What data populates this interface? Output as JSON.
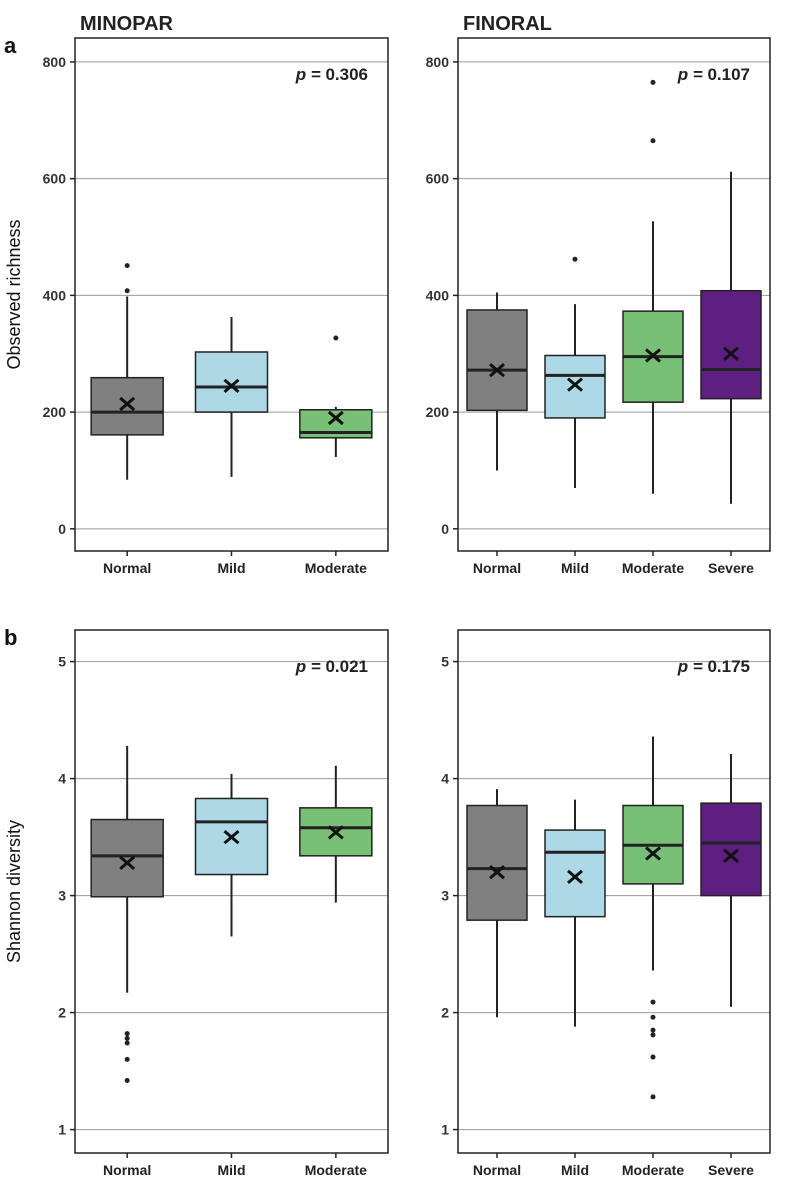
{
  "chart_data": [
    {
      "type": "box",
      "panel": "a",
      "title": "MINOPAR",
      "ylabel": "Observed richness",
      "p_value": "0.306",
      "ylim": [
        -38,
        841
      ],
      "yticks": [
        0,
        200,
        400,
        600,
        800
      ],
      "categories": [
        "Normal",
        "Mild",
        "Moderate"
      ],
      "boxes": [
        {
          "min": 84,
          "q1": 161,
          "median": 200,
          "q3": 259,
          "max": 398,
          "mean": 214,
          "outliers": [
            408,
            451
          ],
          "color": "#808080"
        },
        {
          "min": 89,
          "q1": 200,
          "median": 243,
          "q3": 303,
          "max": 363,
          "mean": 245,
          "outliers": [],
          "color": "#add8e6"
        },
        {
          "min": 123,
          "q1": 156,
          "median": 165,
          "q3": 204,
          "max": 209,
          "mean": 190,
          "outliers": [
            327
          ],
          "color": "#77c075"
        }
      ]
    },
    {
      "type": "box",
      "panel": "",
      "title": "FINORAL",
      "ylabel": "",
      "p_value": "0.107",
      "ylim": [
        -38,
        841
      ],
      "yticks": [
        0,
        200,
        400,
        600,
        800
      ],
      "categories": [
        "Normal",
        "Mild",
        "Moderate",
        "Severe"
      ],
      "boxes": [
        {
          "min": 100,
          "q1": 203,
          "median": 272,
          "q3": 375,
          "max": 405,
          "mean": 272,
          "outliers": [],
          "color": "#808080"
        },
        {
          "min": 70,
          "q1": 190,
          "median": 263,
          "q3": 297,
          "max": 385,
          "mean": 247,
          "outliers": [
            462
          ],
          "color": "#add8e6"
        },
        {
          "min": 60,
          "q1": 217,
          "median": 295,
          "q3": 373,
          "max": 527,
          "mean": 297,
          "outliers": [
            665,
            765
          ],
          "color": "#77c075"
        },
        {
          "min": 43,
          "q1": 223,
          "median": 273,
          "q3": 408,
          "max": 612,
          "mean": 300,
          "outliers": [],
          "color": "#5f1f82"
        }
      ]
    },
    {
      "type": "box",
      "panel": "b",
      "title": "",
      "ylabel": "Shannon diversity",
      "p_value": "0.021",
      "ylim": [
        0.8,
        5.27
      ],
      "yticks": [
        1,
        2,
        3,
        4,
        5
      ],
      "categories": [
        "Normal",
        "Mild",
        "Moderate"
      ],
      "boxes": [
        {
          "min": 2.17,
          "q1": 2.99,
          "median": 3.34,
          "q3": 3.65,
          "max": 4.28,
          "mean": 3.28,
          "outliers": [
            1.82,
            1.78,
            1.74,
            1.6,
            1.42
          ],
          "color": "#808080"
        },
        {
          "min": 2.65,
          "q1": 3.18,
          "median": 3.63,
          "q3": 3.83,
          "max": 4.04,
          "mean": 3.5,
          "outliers": [],
          "color": "#add8e6"
        },
        {
          "min": 2.94,
          "q1": 3.34,
          "median": 3.58,
          "q3": 3.75,
          "max": 4.11,
          "mean": 3.54,
          "outliers": [],
          "color": "#77c075"
        }
      ]
    },
    {
      "type": "box",
      "panel": "",
      "title": "",
      "ylabel": "",
      "p_value": "0.175",
      "ylim": [
        0.8,
        5.27
      ],
      "yticks": [
        1,
        2,
        3,
        4,
        5
      ],
      "categories": [
        "Normal",
        "Mild",
        "Moderate",
        "Severe"
      ],
      "boxes": [
        {
          "min": 1.96,
          "q1": 2.79,
          "median": 3.23,
          "q3": 3.77,
          "max": 3.91,
          "mean": 3.2,
          "outliers": [],
          "color": "#808080"
        },
        {
          "min": 1.88,
          "q1": 2.82,
          "median": 3.37,
          "q3": 3.56,
          "max": 3.82,
          "mean": 3.16,
          "outliers": [],
          "color": "#add8e6"
        },
        {
          "min": 2.36,
          "q1": 3.1,
          "median": 3.43,
          "q3": 3.77,
          "max": 4.36,
          "mean": 3.36,
          "outliers": [
            2.09,
            1.96,
            1.85,
            1.81,
            1.62,
            1.28
          ],
          "color": "#77c075"
        },
        {
          "min": 2.05,
          "q1": 3.0,
          "median": 3.45,
          "q3": 3.79,
          "max": 4.21,
          "mean": 3.34,
          "outliers": [],
          "color": "#5f1f82"
        }
      ]
    }
  ],
  "p_label": "p = "
}
